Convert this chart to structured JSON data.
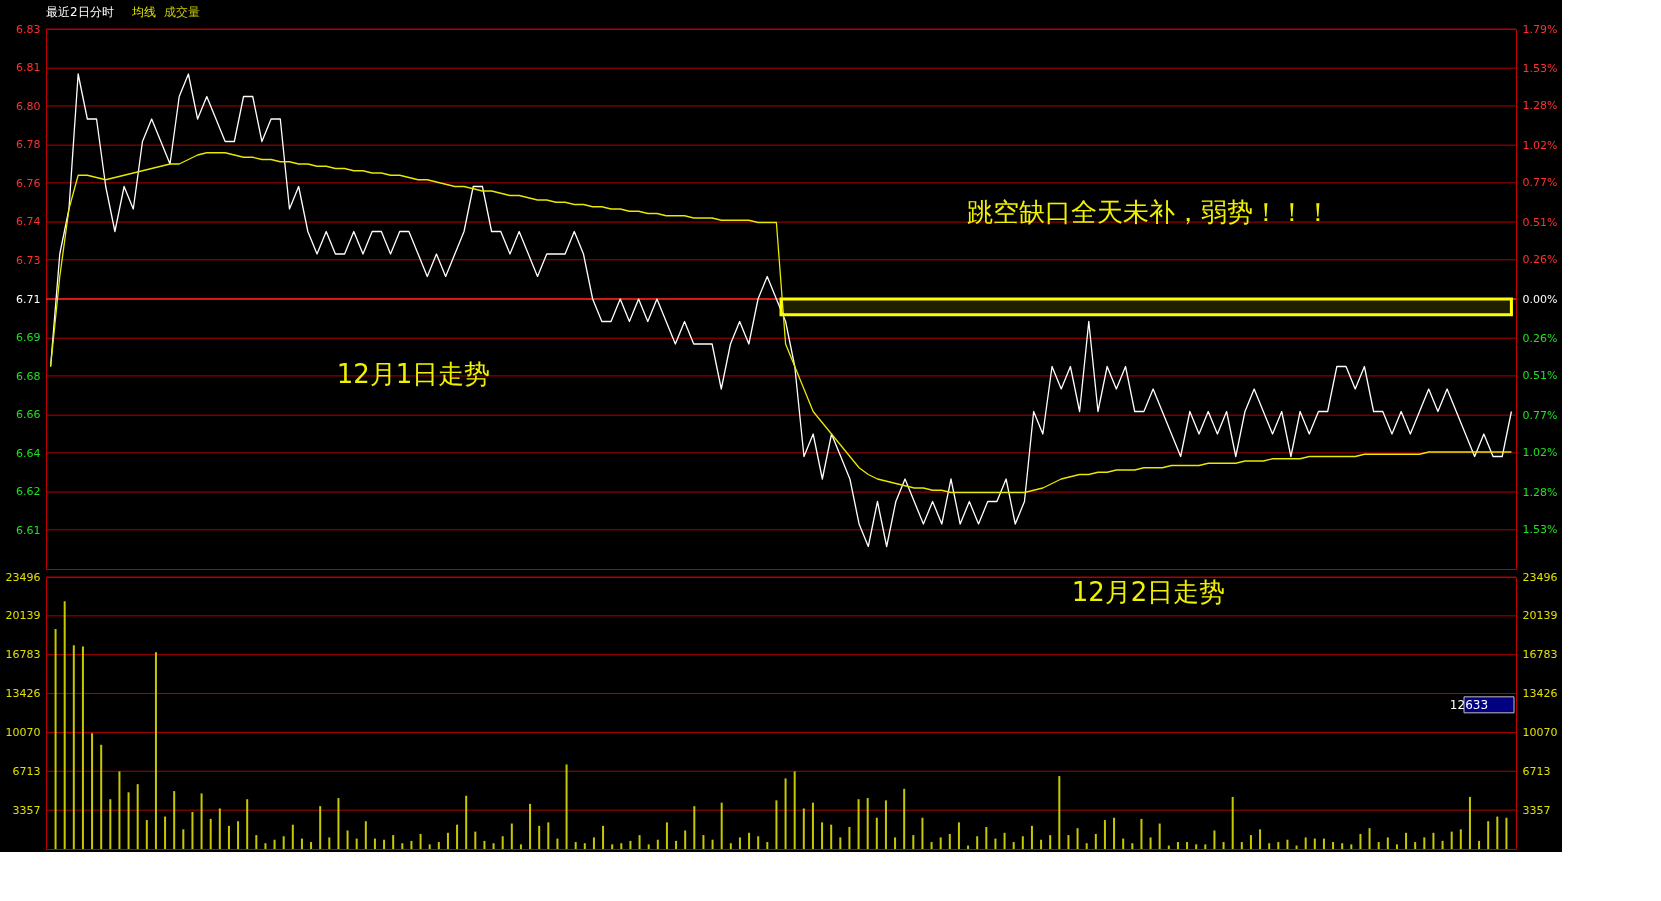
{
  "chart_data": [
    {
      "type": "line",
      "title": "最近2日分时",
      "legend": "top left",
      "grid": "y",
      "annotations": [
        "12月1日走势",
        "跳空缺口全天未补，弱势！！！"
      ],
      "categories": [
        null,
        null,
        null,
        null,
        null,
        null,
        null,
        null,
        null,
        null,
        null,
        null,
        null,
        null,
        null,
        null,
        null,
        null,
        null,
        null,
        null,
        null,
        null,
        null,
        null,
        null,
        null,
        null,
        null,
        null,
        null,
        null,
        null,
        null,
        null,
        null,
        null,
        null,
        null,
        null,
        null,
        null,
        null,
        null,
        null,
        null,
        null,
        null,
        null,
        null,
        null,
        null,
        null,
        null,
        null,
        null,
        null,
        null,
        null,
        null,
        null,
        null,
        null,
        null,
        null,
        null,
        null,
        null,
        null,
        null,
        null,
        null,
        null,
        null,
        null,
        null,
        null,
        null,
        null,
        null,
        null,
        null,
        null,
        null,
        null,
        null,
        null,
        null,
        null,
        null,
        null,
        null,
        null,
        null,
        null,
        null,
        null,
        null,
        null,
        null,
        null,
        null,
        null,
        null,
        null,
        null,
        null,
        null,
        null,
        null,
        null,
        null,
        null,
        null,
        null,
        null,
        null,
        null,
        null,
        null,
        null,
        null,
        null,
        null,
        null,
        null,
        null,
        null,
        null,
        null,
        null,
        null,
        null,
        null,
        null,
        null,
        null,
        null,
        null,
        null,
        null,
        null,
        null,
        null,
        null,
        null,
        null,
        null,
        null,
        null,
        null,
        null,
        null,
        null,
        null,
        null,
        null,
        null,
        null,
        null
      ],
      "series": [
        {
          "color": "#ffffff",
          "values": [
            6.68,
            6.73,
            6.75,
            6.81,
            6.79,
            6.79,
            6.76,
            6.74,
            6.76,
            6.75,
            6.78,
            6.79,
            6.78,
            6.77,
            6.8,
            6.81,
            6.79,
            6.8,
            6.79,
            6.78,
            6.78,
            6.8,
            6.8,
            6.78,
            6.79,
            6.79,
            6.75,
            6.76,
            6.74,
            6.73,
            6.74,
            6.73,
            6.73,
            6.74,
            6.73,
            6.74,
            6.74,
            6.73,
            6.74,
            6.74,
            6.73,
            6.72,
            6.73,
            6.72,
            6.73,
            6.74,
            6.76,
            6.76,
            6.74,
            6.74,
            6.73,
            6.74,
            6.73,
            6.72,
            6.73,
            6.73,
            6.73,
            6.74,
            6.73,
            6.71,
            6.7,
            6.7,
            6.71,
            6.7,
            6.71,
            6.7,
            6.71,
            6.7,
            6.69,
            6.7,
            6.69,
            6.69,
            6.69,
            6.67,
            6.69,
            6.7,
            6.69,
            6.71,
            6.72,
            6.71,
            6.7,
            6.68,
            6.64,
            6.65,
            6.63,
            6.65,
            6.64,
            6.63,
            6.61,
            6.6,
            6.62,
            6.6,
            6.62,
            6.63,
            6.62,
            6.61,
            6.62,
            6.61,
            6.63,
            6.61,
            6.62,
            6.61,
            6.62,
            6.62,
            6.63,
            6.61,
            6.62,
            6.66,
            6.65,
            6.68,
            6.67,
            6.68,
            6.66,
            6.7,
            6.66,
            6.68,
            6.67,
            6.68,
            6.66,
            6.66,
            6.67,
            6.66,
            6.65,
            6.64,
            6.66,
            6.65,
            6.66,
            6.65,
            6.66,
            6.64,
            6.66,
            6.67,
            6.66,
            6.65,
            6.66,
            6.64,
            6.66,
            6.65,
            6.66,
            6.66,
            6.68,
            6.68,
            6.67,
            6.68,
            6.66,
            6.66,
            6.65,
            6.66,
            6.65,
            6.66,
            6.67,
            6.66,
            6.67,
            6.66,
            6.65,
            6.64,
            6.65,
            6.64,
            6.64,
            6.66
          ]
        },
        {
          "name": "均线",
          "color": "#e8e800",
          "values": [
            6.68,
            6.72,
            6.75,
            6.765,
            6.765,
            6.764,
            6.763,
            6.764,
            6.765,
            6.766,
            6.767,
            6.768,
            6.769,
            6.77,
            6.77,
            6.772,
            6.774,
            6.775,
            6.775,
            6.775,
            6.774,
            6.773,
            6.773,
            6.772,
            6.772,
            6.771,
            6.771,
            6.77,
            6.77,
            6.769,
            6.769,
            6.768,
            6.768,
            6.767,
            6.767,
            6.766,
            6.766,
            6.765,
            6.765,
            6.764,
            6.763,
            6.763,
            6.762,
            6.761,
            6.76,
            6.76,
            6.759,
            6.758,
            6.758,
            6.757,
            6.756,
            6.756,
            6.755,
            6.754,
            6.754,
            6.753,
            6.753,
            6.752,
            6.752,
            6.751,
            6.751,
            6.75,
            6.75,
            6.749,
            6.749,
            6.748,
            6.748,
            6.747,
            6.747,
            6.747,
            6.746,
            6.746,
            6.746,
            6.745,
            6.745,
            6.745,
            6.745,
            6.744,
            6.744,
            6.744,
            6.69,
            6.68,
            6.67,
            6.66,
            6.655,
            6.65,
            6.645,
            6.64,
            6.635,
            6.632,
            6.63,
            6.629,
            6.628,
            6.627,
            6.626,
            6.626,
            6.625,
            6.625,
            6.624,
            6.624,
            6.624,
            6.624,
            6.624,
            6.624,
            6.624,
            6.624,
            6.624,
            6.625,
            6.626,
            6.628,
            6.63,
            6.631,
            6.632,
            6.632,
            6.633,
            6.633,
            6.634,
            6.634,
            6.634,
            6.635,
            6.635,
            6.635,
            6.636,
            6.636,
            6.636,
            6.636,
            6.637,
            6.637,
            6.637,
            6.637,
            6.638,
            6.638,
            6.638,
            6.639,
            6.639,
            6.639,
            6.639,
            6.64,
            6.64,
            6.64,
            6.64,
            6.64,
            6.64,
            6.641,
            6.641,
            6.641,
            6.641,
            6.641,
            6.641,
            6.641,
            6.642,
            6.642,
            6.642,
            6.642,
            6.642,
            6.642,
            6.642,
            6.642,
            6.642,
            6.642
          ]
        }
      ],
      "ylim": [
        6.59,
        6.83
      ],
      "yticks": [
        6.83,
        {
          "value": 6.8129,
          "label": "6.81"
        },
        {
          "value": 6.7957,
          "label": "6.80"
        },
        {
          "value": 6.7786,
          "label": "6.78"
        },
        {
          "value": 6.7614,
          "label": "6.76"
        },
        {
          "value": 6.7443,
          "label": "6.74"
        },
        {
          "value": 6.7271,
          "label": "6.73"
        },
        6.71,
        {
          "value": 6.6929,
          "label": "6.69"
        },
        {
          "value": 6.6757,
          "label": "6.68"
        },
        {
          "value": 6.6586,
          "label": "6.66"
        },
        {
          "value": 6.6414,
          "label": "6.64"
        },
        {
          "value": 6.6243,
          "label": "6.62"
        },
        {
          "value": 6.6071,
          "label": "6.61"
        }
      ],
      "y2lim": [
        -1.79,
        1.79
      ],
      "y2ticks": [
        {
          "value": 1.79,
          "label": "1.79%"
        },
        {
          "value": 1.53,
          "label": "1.53%"
        },
        {
          "value": 1.28,
          "label": "1.28%"
        },
        {
          "value": 1.02,
          "label": "1.02%"
        },
        {
          "value": 0.77,
          "label": "0.77%"
        },
        {
          "value": 0.51,
          "label": "0.51%"
        },
        {
          "value": 0.26,
          "label": "0.26%"
        },
        {
          "value": 0,
          "label": "0.00%"
        },
        {
          "value": -0.26,
          "label": "0.26%"
        },
        {
          "value": -0.51,
          "label": "0.51%"
        },
        {
          "value": -0.77,
          "label": "0.77%"
        },
        {
          "value": -1.02,
          "label": "1.02%"
        },
        {
          "value": -1.28,
          "label": "1.28%"
        },
        {
          "value": -1.53,
          "label": "1.53%"
        }
      ],
      "ref_lines": [
        {
          "axis": "y",
          "value": 6.71,
          "color": "#ff2020"
        }
      ],
      "bands": [
        {
          "axis": "y",
          "from": 6.703,
          "to": 6.71,
          "color": "#ffff00"
        }
      ]
    },
    {
      "type": "bar",
      "grid": "y",
      "annotations": [
        "12月2日走势",
        "12633"
      ],
      "categories": [
        null,
        null,
        null,
        null,
        null,
        null,
        null,
        null,
        null,
        null,
        null,
        null,
        null,
        null,
        null,
        null,
        null,
        null,
        null,
        null,
        null,
        null,
        null,
        null,
        null,
        null,
        null,
        null,
        null,
        null,
        null,
        null,
        null,
        null,
        null,
        null,
        null,
        null,
        null,
        null,
        null,
        null,
        null,
        null,
        null,
        null,
        null,
        null,
        null,
        null,
        null,
        null,
        null,
        null,
        null,
        null,
        null,
        null,
        null,
        null,
        null,
        null,
        null,
        null,
        null,
        null,
        null,
        null,
        null,
        null,
        null,
        null,
        null,
        null,
        null,
        null,
        null,
        null,
        null,
        null,
        null,
        null,
        null,
        null,
        null,
        null,
        null,
        null,
        null,
        null,
        null,
        null,
        null,
        null,
        null,
        null,
        null,
        null,
        null,
        null,
        null,
        null,
        null,
        null,
        null,
        null,
        null,
        null,
        null,
        null,
        null,
        null,
        null,
        null,
        null,
        null,
        null,
        null,
        null,
        null,
        null,
        null,
        null,
        null,
        null,
        null,
        null,
        null,
        null,
        null,
        null,
        null,
        null,
        null,
        null,
        null,
        null,
        null,
        null,
        null,
        null,
        null,
        null,
        null,
        null,
        null,
        null,
        null,
        null,
        null,
        null,
        null,
        null,
        null,
        null,
        null,
        null,
        null,
        null,
        null
      ],
      "series": [
        {
          "name": "成交量",
          "color": "#c8c800",
          "values": [
            19000,
            21400,
            17600,
            17500,
            10000,
            9000,
            4300,
            6700,
            4900,
            5600,
            2500,
            17000,
            2800,
            5000,
            1700,
            3200,
            4800,
            2600,
            3500,
            2000,
            2400,
            4300,
            1200,
            500,
            800,
            1100,
            2100,
            900,
            600,
            3700,
            1000,
            4400,
            1600,
            900,
            2400,
            900,
            800,
            1200,
            500,
            700,
            1300,
            400,
            600,
            1400,
            2100,
            4600,
            1500,
            700,
            500,
            1100,
            2200,
            400,
            3900,
            2000,
            2300,
            900,
            7300,
            600,
            500,
            1000,
            2000,
            400,
            500,
            700,
            1200,
            400,
            800,
            2300,
            700,
            1600,
            3700,
            1200,
            800,
            4000,
            500,
            1000,
            1400,
            1100,
            600,
            4200,
            6100,
            6700,
            3500,
            4000,
            2300,
            2100,
            1000,
            1900,
            4300,
            4400,
            2700,
            4200,
            1000,
            5200,
            1200,
            2700,
            600,
            1000,
            1300,
            2300,
            300,
            1100,
            1900,
            900,
            1400,
            600,
            1100,
            2000,
            800,
            1200,
            6300,
            1200,
            1800,
            500,
            1300,
            2500,
            2700,
            900,
            500,
            2600,
            1000,
            2200,
            300,
            600,
            600,
            400,
            400,
            1600,
            600,
            4500,
            600,
            1200,
            1700,
            500,
            600,
            800,
            300,
            1000,
            900,
            900,
            600,
            500,
            400,
            1300,
            1800,
            600,
            1000,
            400,
            1400,
            600,
            1000,
            1400,
            700,
            1500,
            1700,
            4500,
            700,
            2400,
            2800,
            2700
          ]
        }
      ],
      "ylim": [
        0,
        23496
      ],
      "yticks": [
        3357,
        6713,
        10070,
        13426,
        16783,
        20139,
        23496
      ],
      "y2lim": [
        0,
        23496
      ],
      "y2ticks": [
        3357,
        6713,
        10070,
        13426,
        16783,
        20139,
        23496
      ]
    }
  ]
}
